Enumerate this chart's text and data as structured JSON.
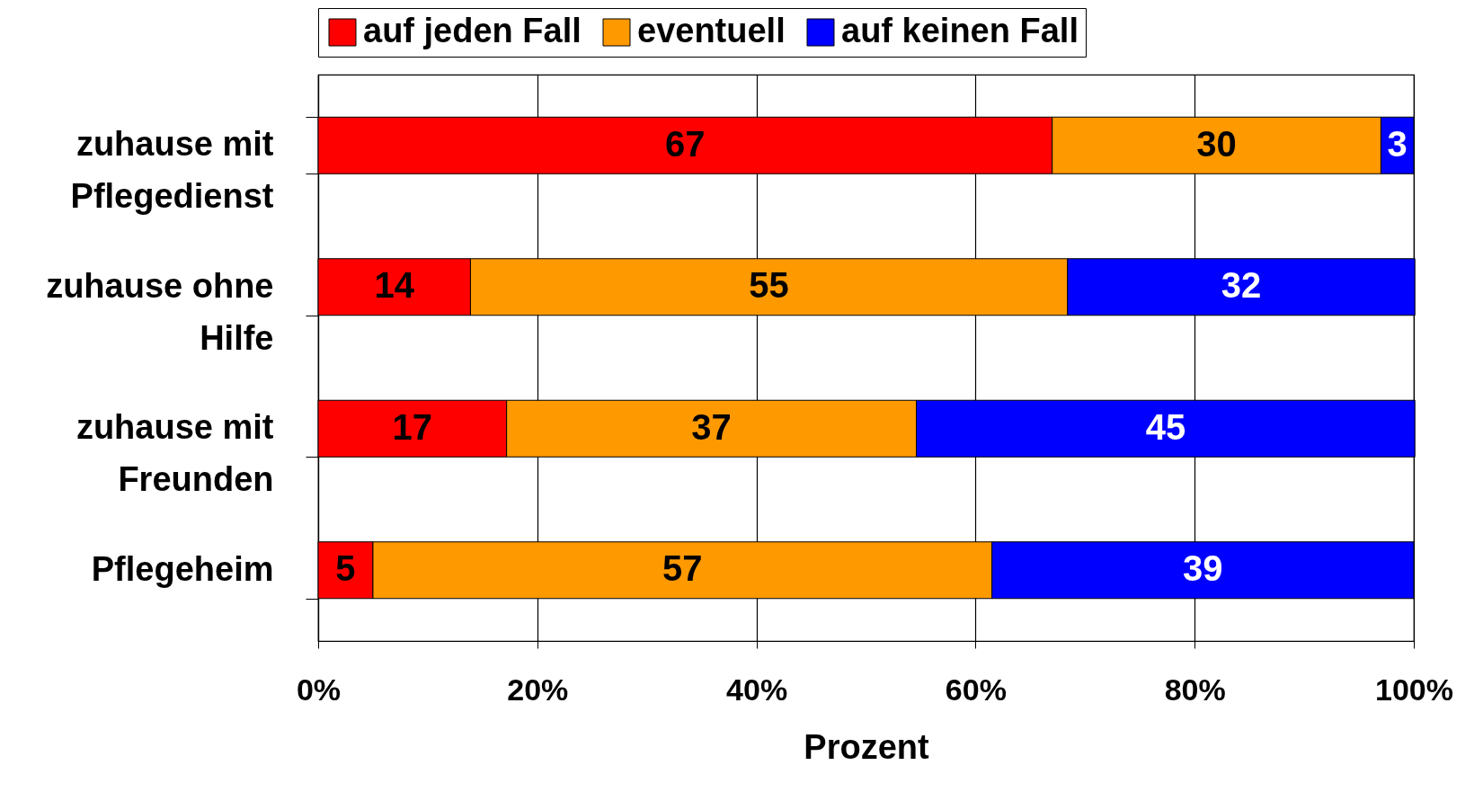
{
  "chart_data": {
    "type": "bar",
    "orientation": "horizontal",
    "stacked": true,
    "xlabel": "Prozent",
    "categories": [
      "zuhause mit Pflegedienst",
      "zuhause ohne Hilfe",
      "zuhause mit Freunden",
      "Pflegeheim"
    ],
    "series": [
      {
        "name": "auf jeden Fall",
        "color": "#ff0000",
        "values": [
          67,
          13.9,
          17.2,
          5.0
        ],
        "value_labels": [
          "67",
          "14",
          "17",
          "5"
        ]
      },
      {
        "name": "eventuell",
        "color": "#ff9900",
        "values": [
          30,
          54.5,
          37.4,
          56.5
        ],
        "value_labels": [
          "30",
          "55",
          "37",
          "57"
        ]
      },
      {
        "name": "auf keinen Fall",
        "color": "#0000ff",
        "values": [
          3,
          31.7,
          45.5,
          38.5
        ],
        "value_labels": [
          "3",
          "32",
          "45",
          "39"
        ]
      }
    ],
    "xlim": [
      0,
      100
    ],
    "xticks": [
      {
        "value": 0,
        "label": "0%"
      },
      {
        "value": 20,
        "label": "20%"
      },
      {
        "value": 40,
        "label": "40%"
      },
      {
        "value": 60,
        "label": "60%"
      },
      {
        "value": 80,
        "label": "80%"
      },
      {
        "value": 100,
        "label": "100%"
      }
    ],
    "grid": "x",
    "legend": "top"
  }
}
